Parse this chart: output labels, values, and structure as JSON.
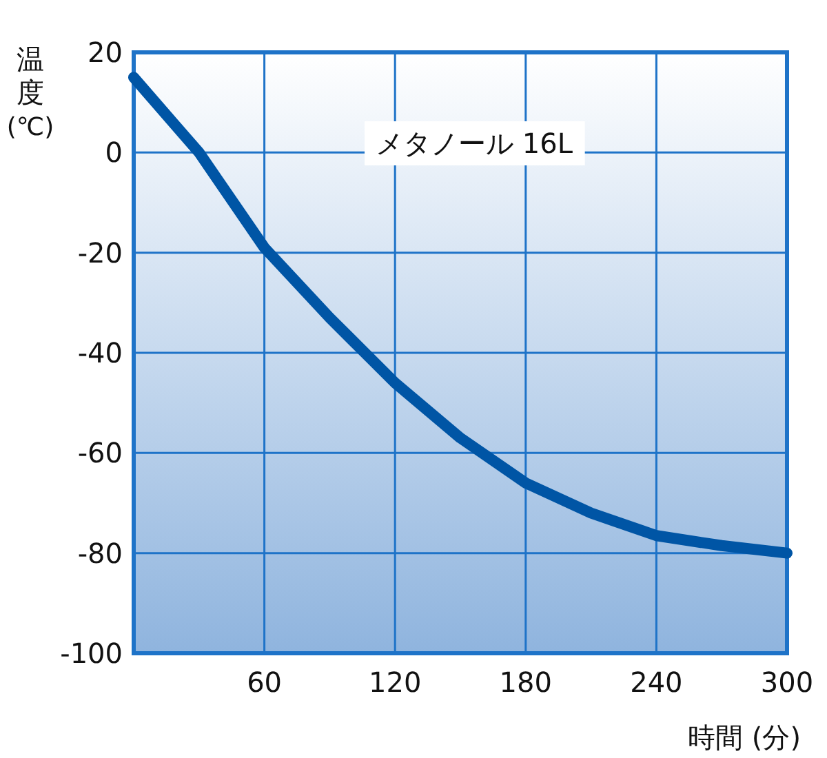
{
  "chart_data": {
    "type": "line",
    "xlabel": "時間 (分)",
    "ylabel": "温度\n(℃)",
    "x": [
      0,
      30,
      60,
      90,
      120,
      150,
      180,
      210,
      240,
      270,
      300
    ],
    "series": [
      {
        "color": "#0055a5",
        "values": [
          15,
          0,
          -19,
          -33,
          -46,
          -57,
          -66,
          -72,
          -76.5,
          -78.5,
          -80
        ]
      }
    ],
    "xlim": [
      0,
      300
    ],
    "xticks": [
      60,
      120,
      180,
      240,
      300
    ],
    "ylim": [
      -100,
      20
    ],
    "yticks": [
      -100,
      -80,
      -60,
      -40,
      -20,
      0,
      20
    ],
    "grid": true,
    "marker": "none",
    "line_style": "solid",
    "annotations": [
      "メタノール 16L"
    ]
  }
}
